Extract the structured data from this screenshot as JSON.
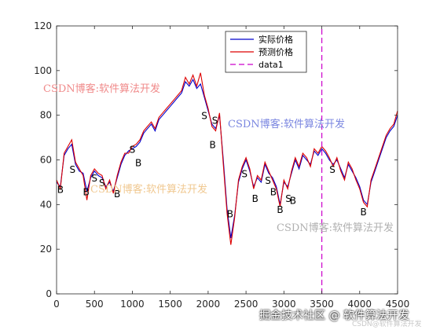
{
  "chart_data": {
    "type": "line",
    "xlim": [
      0,
      4500
    ],
    "ylim": [
      0,
      120
    ],
    "xticks": [
      0,
      500,
      1000,
      1500,
      2000,
      2500,
      3000,
      3500,
      4000,
      4500
    ],
    "yticks": [
      0,
      20,
      40,
      60,
      80,
      100,
      120
    ],
    "grid": false,
    "legend_position": "top-right",
    "series": [
      {
        "name": "实际价格",
        "color": "#0000cc",
        "x": [
          0,
          50,
          100,
          150,
          200,
          250,
          300,
          350,
          400,
          450,
          500,
          550,
          600,
          650,
          700,
          750,
          800,
          850,
          900,
          950,
          1000,
          1050,
          1100,
          1150,
          1200,
          1250,
          1300,
          1350,
          1400,
          1450,
          1500,
          1550,
          1600,
          1650,
          1700,
          1750,
          1800,
          1850,
          1900,
          1950,
          2000,
          2050,
          2100,
          2150,
          2200,
          2250,
          2300,
          2350,
          2400,
          2450,
          2500,
          2550,
          2600,
          2650,
          2700,
          2750,
          2800,
          2850,
          2900,
          2950,
          3000,
          3050,
          3100,
          3150,
          3200,
          3250,
          3300,
          3350,
          3400,
          3450,
          3500,
          3550,
          3600,
          3650,
          3700,
          3750,
          3800,
          3850,
          3900,
          3950,
          4000,
          4050,
          4100,
          4150,
          4200,
          4250,
          4300,
          4350,
          4400,
          4450,
          4500
        ],
        "y": [
          50,
          48,
          62,
          65,
          67,
          58,
          55,
          54,
          46,
          52,
          55,
          53,
          52,
          48,
          50,
          46,
          52,
          58,
          62,
          64,
          65,
          66,
          68,
          72,
          74,
          76,
          73,
          78,
          80,
          82,
          84,
          86,
          88,
          90,
          95,
          93,
          96,
          92,
          94,
          88,
          82,
          76,
          74,
          80,
          60,
          38,
          25,
          35,
          50,
          56,
          60,
          55,
          48,
          52,
          50,
          58,
          54,
          52,
          48,
          40,
          50,
          48,
          54,
          60,
          56,
          62,
          60,
          58,
          64,
          62,
          65,
          63,
          60,
          58,
          60,
          56,
          52,
          58,
          55,
          52,
          48,
          42,
          40,
          50,
          55,
          60,
          65,
          70,
          73,
          75,
          80
        ]
      },
      {
        "name": "预测价格",
        "color": "#dd0000",
        "x": [
          0,
          50,
          100,
          150,
          200,
          250,
          300,
          350,
          400,
          450,
          500,
          550,
          600,
          650,
          700,
          750,
          800,
          850,
          900,
          950,
          1000,
          1050,
          1100,
          1150,
          1200,
          1250,
          1300,
          1350,
          1400,
          1450,
          1500,
          1550,
          1600,
          1650,
          1700,
          1750,
          1800,
          1850,
          1900,
          1950,
          2000,
          2050,
          2100,
          2150,
          2200,
          2250,
          2300,
          2350,
          2400,
          2450,
          2500,
          2550,
          2600,
          2650,
          2700,
          2750,
          2800,
          2850,
          2900,
          2950,
          3000,
          3050,
          3100,
          3150,
          3200,
          3250,
          3300,
          3350,
          3400,
          3450,
          3500,
          3550,
          3600,
          3650,
          3700,
          3750,
          3800,
          3850,
          3900,
          3950,
          4000,
          4050,
          4100,
          4150,
          4200,
          4250,
          4300,
          4350,
          4400,
          4450,
          4500
        ],
        "y": [
          51,
          47,
          63,
          66,
          69,
          59,
          56,
          53,
          42,
          53,
          56,
          54,
          53,
          47,
          51,
          45,
          53,
          59,
          63,
          63,
          66,
          67,
          69,
          73,
          75,
          77,
          74,
          79,
          81,
          83,
          85,
          87,
          89,
          91,
          97,
          94,
          98,
          93,
          99,
          89,
          83,
          75,
          73,
          81,
          58,
          36,
          22,
          34,
          51,
          57,
          61,
          56,
          47,
          53,
          51,
          59,
          55,
          51,
          47,
          39,
          51,
          47,
          55,
          61,
          57,
          63,
          61,
          57,
          65,
          63,
          66,
          64,
          61,
          57,
          61,
          55,
          51,
          59,
          56,
          51,
          47,
          41,
          39,
          51,
          56,
          61,
          66,
          71,
          74,
          76,
          82
        ]
      },
      {
        "name": "data1",
        "color": "#cc00cc",
        "style": "dashed-vertical",
        "x": [
          3500,
          3500
        ],
        "y": [
          0,
          120
        ]
      }
    ],
    "annotations": [
      {
        "text": "B",
        "x": 50,
        "y": 47
      },
      {
        "text": "S",
        "x": 210,
        "y": 56
      },
      {
        "text": "B",
        "x": 390,
        "y": 46
      },
      {
        "text": "S",
        "x": 500,
        "y": 52
      },
      {
        "text": "S",
        "x": 600,
        "y": 50
      },
      {
        "text": "B",
        "x": 800,
        "y": 45
      },
      {
        "text": "S",
        "x": 1000,
        "y": 65
      },
      {
        "text": "B",
        "x": 1080,
        "y": 59
      },
      {
        "text": "S",
        "x": 1950,
        "y": 80
      },
      {
        "text": "S",
        "x": 2090,
        "y": 78
      },
      {
        "text": "B",
        "x": 2060,
        "y": 67
      },
      {
        "text": "B",
        "x": 2290,
        "y": 36
      },
      {
        "text": "S",
        "x": 2480,
        "y": 54
      },
      {
        "text": "B",
        "x": 2620,
        "y": 43
      },
      {
        "text": "S",
        "x": 2790,
        "y": 51
      },
      {
        "text": "B",
        "x": 2860,
        "y": 46
      },
      {
        "text": "B",
        "x": 2950,
        "y": 38
      },
      {
        "text": "S",
        "x": 3060,
        "y": 43
      },
      {
        "text": "B",
        "x": 3120,
        "y": 42
      },
      {
        "text": "S",
        "x": 3640,
        "y": 56
      },
      {
        "text": "B",
        "x": 4050,
        "y": 37
      }
    ]
  },
  "watermarks": {
    "wm1": "CSDN博客:软件算法开发",
    "wm2": "CSDN博客:软件算法开发",
    "wm3": "CSDN博客:软件算法开发",
    "wm4": "CSDN博客:软件算法开发"
  },
  "footer": {
    "main": "掘金技术社区 @ 软件算法开发",
    "sub": "CSDN@软件算法开发"
  }
}
